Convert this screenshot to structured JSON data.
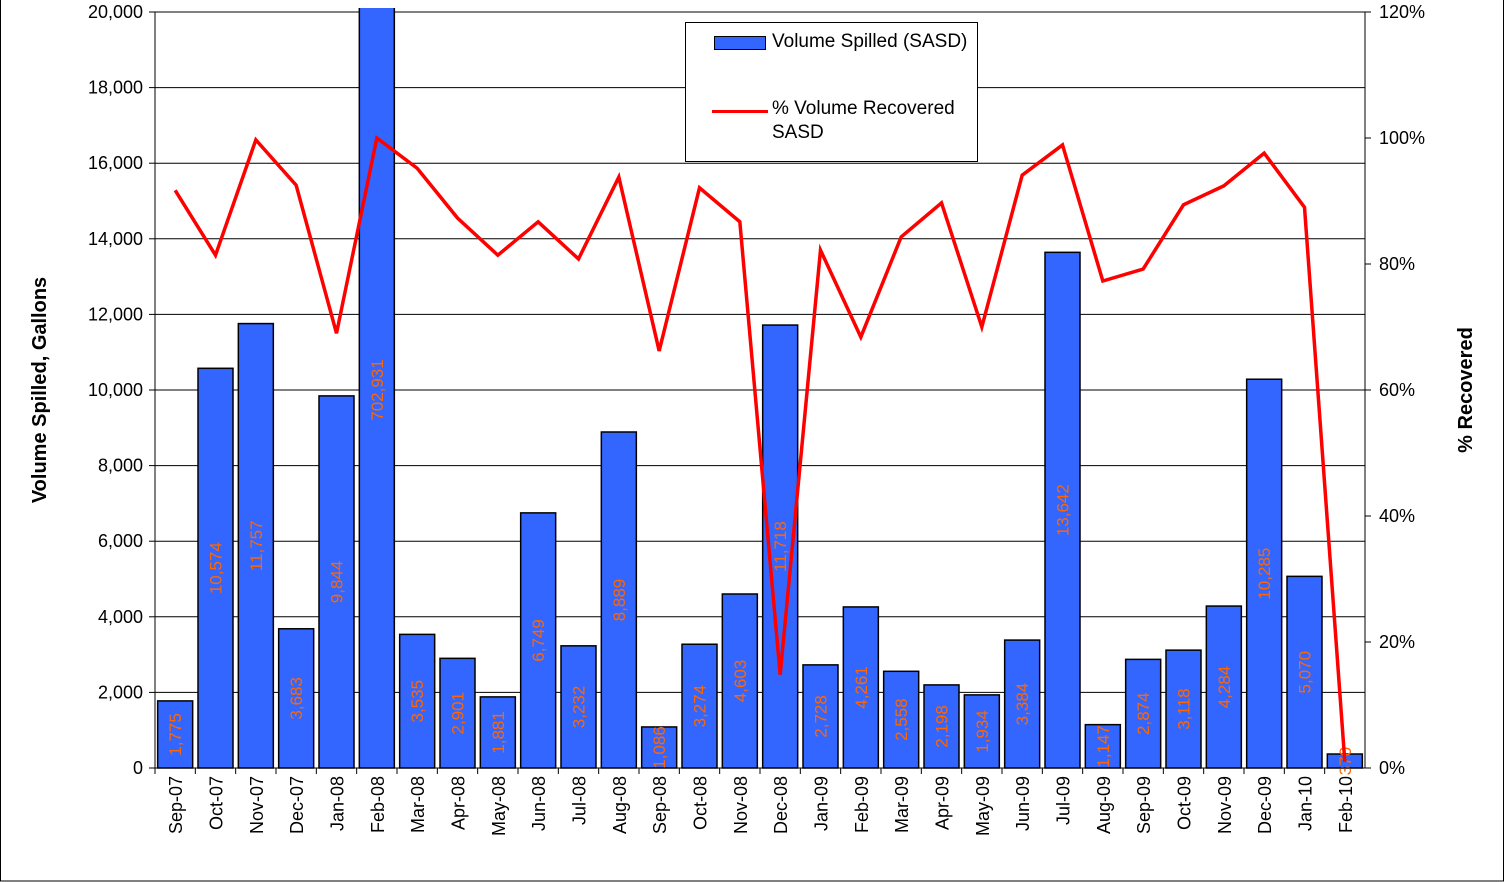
{
  "chart_data": {
    "type": "bar-line",
    "y_label": "Volume Spilled, Gallons",
    "y2_label": "% Recovered",
    "categories": [
      "Sep-07",
      "Oct-07",
      "Nov-07",
      "Dec-07",
      "Jan-08",
      "Feb-08",
      "Mar-08",
      "Apr-08",
      "May-08",
      "Jun-08",
      "Jul-08",
      "Aug-08",
      "Sep-08",
      "Oct-08",
      "Nov-08",
      "Dec-08",
      "Jan-09",
      "Feb-09",
      "Mar-09",
      "Apr-09",
      "May-09",
      "Jun-09",
      "Jul-09",
      "Aug-09",
      "Sep-09",
      "Oct-09",
      "Nov-09",
      "Dec-09",
      "Jan-10",
      "Feb-10"
    ],
    "series": [
      {
        "name": "Volume Spilled (SASD)",
        "type": "bar",
        "color": "#3366ff",
        "label_color": "#ff6600",
        "values": [
          1775,
          10574,
          11757,
          3683,
          9844,
          702931,
          3535,
          2901,
          1881,
          6749,
          3232,
          8889,
          1086,
          3274,
          4603,
          11718,
          2728,
          4261,
          2558,
          2198,
          1934,
          3384,
          13642,
          1147,
          2874,
          3118,
          4284,
          10285,
          5070,
          370
        ],
        "value_labels": [
          "1,775",
          "10,574",
          "11,757",
          "3,683",
          "9,844",
          "702,931",
          "3,535",
          "2,901",
          "1,881",
          "6,749",
          "3,232",
          "8,889",
          "1,086",
          "3,274",
          "4,603",
          "11,718",
          "2,728",
          "4,261",
          "2,558",
          "2,198",
          "1,934",
          "3,384",
          "13,642",
          "1,147",
          "2,874",
          "3,118",
          "4,284",
          "10,285",
          "5,070",
          "370"
        ]
      },
      {
        "name": "% Volume Recovered SASD",
        "type": "line",
        "color": "#ff0000",
        "axis": "y2",
        "values": [
          91.7,
          81.4,
          99.7,
          92.5,
          69,
          100,
          95.2,
          87.3,
          81.4,
          86.7,
          80.8,
          93.8,
          66.2,
          92.1,
          86.7,
          14.8,
          82.2,
          68.4,
          84.3,
          89.7,
          70,
          94.1,
          98.9,
          77.3,
          79.2,
          89.4,
          92.4,
          97.6,
          89,
          1
        ]
      }
    ],
    "ylim": [
      0,
      20000
    ],
    "yticks": [
      0,
      {
        "value": 2000,
        "label": "2,000"
      },
      {
        "value": 4000,
        "label": "4,000"
      },
      {
        "value": 6000,
        "label": "6,000"
      },
      {
        "value": 8000,
        "label": "8,000"
      },
      {
        "value": 10000,
        "label": "10,000"
      },
      {
        "value": 12000,
        "label": "12,000"
      },
      {
        "value": 14000,
        "label": "14,000"
      },
      {
        "value": 16000,
        "label": "16,000"
      },
      {
        "value": 18000,
        "label": "18,000"
      },
      {
        "value": 20000,
        "label": "20,000"
      }
    ],
    "y2lim": [
      0,
      120
    ],
    "y2ticks": [
      {
        "value": 0,
        "label": "0%"
      },
      {
        "value": 20,
        "label": "20%"
      },
      {
        "value": 40,
        "label": "40%"
      },
      {
        "value": 60,
        "label": "60%"
      },
      {
        "value": 80,
        "label": "80%"
      },
      {
        "value": 100,
        "label": "100%"
      },
      {
        "value": 120,
        "label": "120%"
      }
    ],
    "grid": true
  }
}
